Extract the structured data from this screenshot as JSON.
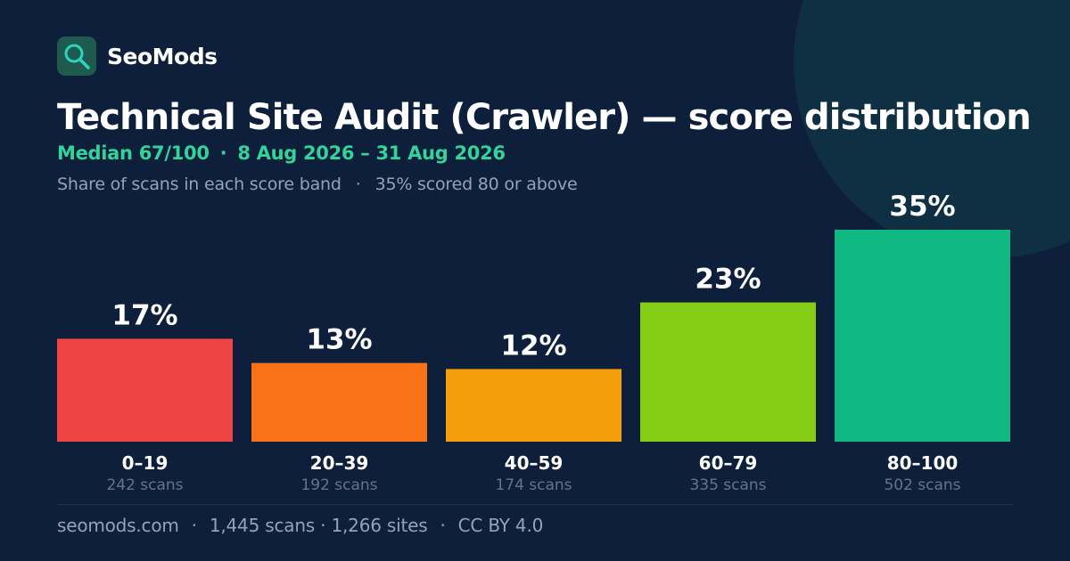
{
  "brand": {
    "name": "SeoMods"
  },
  "title": "Technical Site Audit (Crawler) — score distribution",
  "subtitle": {
    "median": "Median 67/100",
    "separator": "·",
    "date_range": "8 Aug 2026 – 31 Aug 2026"
  },
  "caption": {
    "text": "Share of scans in each score band",
    "separator": "·",
    "highlight": "35% scored 80 or above"
  },
  "footer": {
    "site": "seomods.com",
    "sep1": "·",
    "counts": "1,445 scans · 1,266 sites",
    "sep2": "·",
    "license": "CC BY 4.0"
  },
  "colors": {
    "background": "#0d1f3a",
    "decor_circle": "#0f3042",
    "accent": "#34d399",
    "logo_bg": "#1f5a4e",
    "logo_icon": "#2dd4bf",
    "muted_text": "#94a3b8",
    "value_text": "#ffffff"
  },
  "chart_data": {
    "type": "bar",
    "categories": [
      "0–19",
      "20–39",
      "40–59",
      "60–79",
      "80–100"
    ],
    "values": [
      17,
      13,
      12,
      23,
      35
    ],
    "value_labels": [
      "17%",
      "13%",
      "12%",
      "23%",
      "35%"
    ],
    "counts": [
      "242 scans",
      "192 scans",
      "174 scans",
      "335 scans",
      "502 scans"
    ],
    "bar_colors": [
      "#ef4444",
      "#f97316",
      "#f59e0b",
      "#84cc16",
      "#10b981"
    ],
    "unit": "%",
    "ylim": [
      0,
      35
    ],
    "grid": false,
    "legend": "none",
    "title": "",
    "xlabel": "",
    "ylabel": ""
  }
}
